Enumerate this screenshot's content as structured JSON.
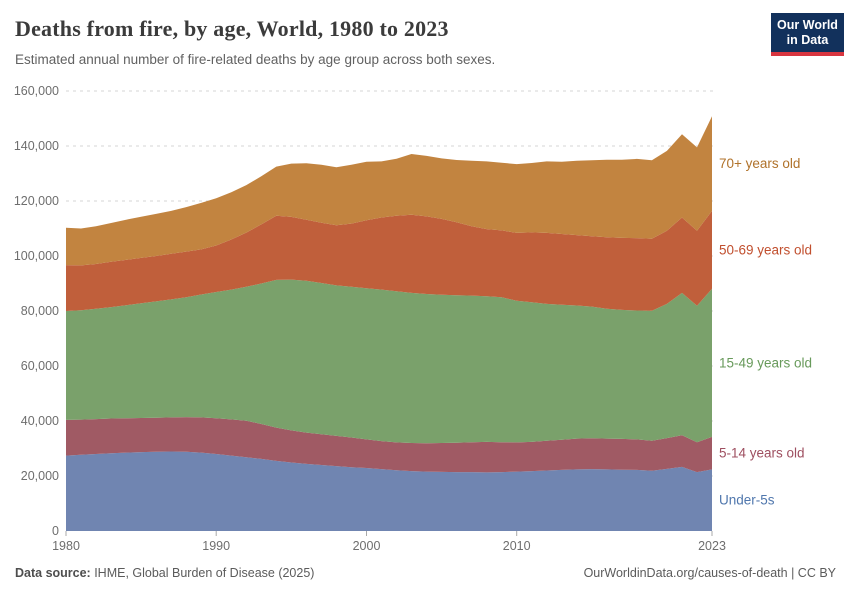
{
  "header": {
    "title": "Deaths from fire, by age, World, 1980 to 2023",
    "subtitle": "Estimated annual number of fire-related deaths by age group across both sexes.",
    "logo": {
      "line1": "Our World",
      "line2": "in Data",
      "bg_color": "#12315c",
      "accent_color": "#d8353f"
    }
  },
  "chart_data": {
    "type": "area",
    "stacked": true,
    "title": "Deaths from fire, by age, World, 1980 to 2023",
    "xlabel": "",
    "ylabel": "",
    "ylim": [
      0,
      160000
    ],
    "yticks": [
      0,
      20000,
      40000,
      60000,
      80000,
      100000,
      120000,
      140000,
      160000
    ],
    "xticks": [
      1980,
      1990,
      2000,
      2010,
      2023
    ],
    "grid": "horizontal-dashed",
    "legend_position": "right-of-plot",
    "years": [
      1980,
      1981,
      1982,
      1983,
      1984,
      1985,
      1986,
      1987,
      1988,
      1989,
      1990,
      1991,
      1992,
      1993,
      1994,
      1995,
      1996,
      1997,
      1998,
      1999,
      2000,
      2001,
      2002,
      2003,
      2004,
      2005,
      2006,
      2007,
      2008,
      2009,
      2010,
      2011,
      2012,
      2013,
      2014,
      2015,
      2016,
      2017,
      2018,
      2019,
      2020,
      2021,
      2022,
      2023
    ],
    "series": [
      {
        "name": "Under-5s",
        "color": "#7085b1",
        "label_color": "#5077ad",
        "values": [
          27400,
          27700,
          28000,
          28300,
          28500,
          28700,
          28800,
          28900,
          28800,
          28500,
          28000,
          27400,
          26800,
          26200,
          25500,
          24900,
          24400,
          24000,
          23600,
          23200,
          22900,
          22500,
          22100,
          21800,
          21600,
          21500,
          21400,
          21400,
          21300,
          21400,
          21600,
          21800,
          22000,
          22200,
          22400,
          22500,
          22400,
          22300,
          22200,
          21900,
          22600,
          23300,
          21400,
          22400
        ]
      },
      {
        "name": "5-14 years old",
        "color": "#a05a64",
        "label_color": "#9e4f60",
        "values": [
          13000,
          12800,
          12700,
          12600,
          12500,
          12400,
          12400,
          12400,
          12600,
          12800,
          13000,
          13200,
          13300,
          12700,
          12100,
          11700,
          11400,
          11200,
          11000,
          10800,
          10400,
          10200,
          10100,
          10200,
          10300,
          10500,
          10700,
          10900,
          11100,
          10900,
          10600,
          10600,
          10800,
          11000,
          11200,
          11200,
          11200,
          11200,
          11100,
          10900,
          11200,
          11500,
          10900,
          11800
        ]
      },
      {
        "name": "15-49 years old",
        "color": "#7aa16b",
        "label_color": "#689a5b",
        "values": [
          39600,
          39800,
          40100,
          40500,
          41100,
          41700,
          42300,
          42900,
          43600,
          44700,
          45900,
          47200,
          48700,
          51100,
          53700,
          54800,
          55200,
          55000,
          54700,
          54800,
          55000,
          55100,
          55000,
          54600,
          54300,
          53900,
          53600,
          53300,
          53000,
          52700,
          51500,
          50800,
          49800,
          49100,
          48400,
          47900,
          47200,
          46900,
          46900,
          47300,
          48800,
          51800,
          49600,
          53900
        ]
      },
      {
        "name": "50-69 years old",
        "color": "#c05f3b",
        "label_color": "#c14f2e",
        "values": [
          16700,
          16300,
          16300,
          16500,
          16500,
          16500,
          16500,
          16600,
          16600,
          16400,
          16900,
          18200,
          19700,
          21500,
          23300,
          22800,
          22200,
          21900,
          21900,
          23000,
          24700,
          26200,
          27400,
          28400,
          28200,
          27600,
          26600,
          25200,
          24400,
          24300,
          24700,
          25400,
          25800,
          25700,
          25600,
          25600,
          26000,
          26200,
          26300,
          26200,
          26600,
          27400,
          27300,
          28300
        ]
      },
      {
        "name": "70+ years old",
        "color": "#c28440",
        "label_color": "#b0722a",
        "values": [
          13600,
          13400,
          13700,
          14100,
          14600,
          15000,
          15300,
          15600,
          16200,
          16900,
          17200,
          17200,
          17300,
          17500,
          17900,
          19400,
          20500,
          21100,
          21100,
          21400,
          21300,
          20400,
          20800,
          22100,
          22000,
          22000,
          22600,
          23800,
          24600,
          24600,
          25000,
          25200,
          26000,
          26300,
          27000,
          27600,
          28200,
          28400,
          28800,
          28500,
          29000,
          30300,
          30300,
          34400
        ]
      }
    ]
  },
  "footer": {
    "source_label": "Data source:",
    "source_value": " IHME, Global Burden of Disease (2025)",
    "credit": "OurWorldinData.org/causes-of-death | CC BY"
  }
}
